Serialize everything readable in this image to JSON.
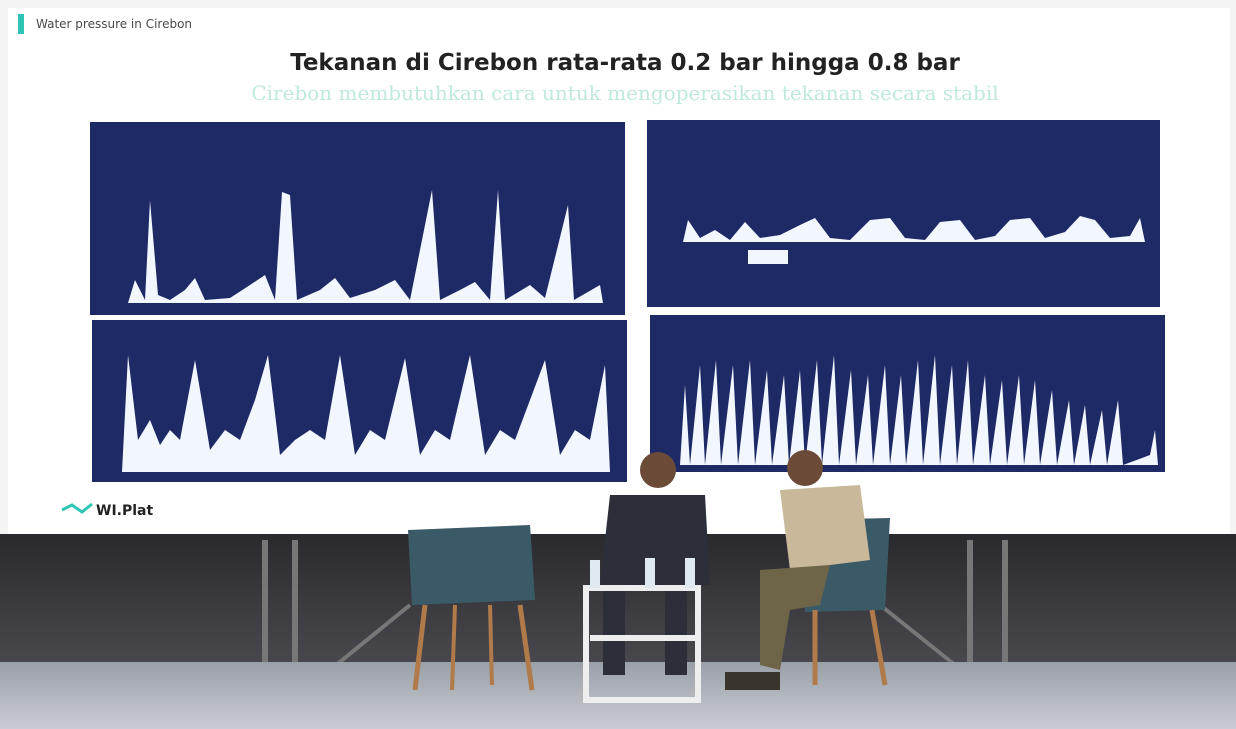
{
  "slide": {
    "tag": "Water pressure in Cirebon",
    "title": "Tekanan di Cirebon rata-rata 0.2 bar hingga 0.8 bar",
    "subtitle": "Cirebon membutuhkan cara untuk mengoperasikan tekanan secara stabil",
    "logo": "WI.Plat"
  }
}
